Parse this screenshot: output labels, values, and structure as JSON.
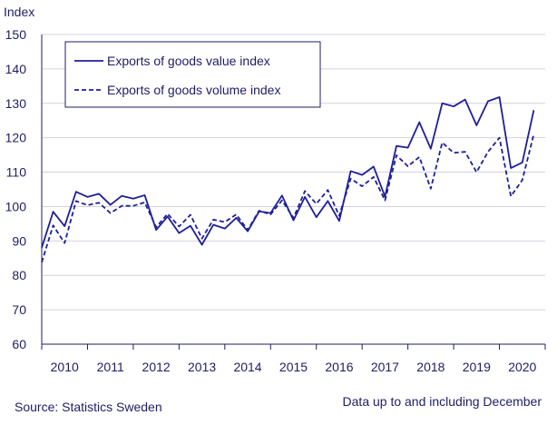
{
  "chart_data": {
    "type": "line",
    "ylabel": "Index",
    "ylim": [
      60,
      150
    ],
    "yticks": [
      60,
      70,
      80,
      90,
      100,
      110,
      120,
      130,
      140,
      150
    ],
    "xlim": [
      2010,
      2021
    ],
    "xticks": [
      "2010",
      "2011",
      "2012",
      "2013",
      "2014",
      "2015",
      "2016",
      "2017",
      "2018",
      "2019",
      "2020"
    ],
    "grid": "horizontal",
    "legend_position": "top-left",
    "x": [
      2010.0,
      2010.25,
      2010.5,
      2010.75,
      2011.0,
      2011.25,
      2011.5,
      2011.75,
      2012.0,
      2012.25,
      2012.5,
      2012.75,
      2013.0,
      2013.25,
      2013.5,
      2013.75,
      2014.0,
      2014.25,
      2014.5,
      2014.75,
      2015.0,
      2015.25,
      2015.5,
      2015.75,
      2016.0,
      2016.25,
      2016.5,
      2016.75,
      2017.0,
      2017.25,
      2017.5,
      2017.75,
      2018.0,
      2018.25,
      2018.5,
      2018.75,
      2019.0,
      2019.25,
      2019.5,
      2019.75,
      2020.0,
      2020.25,
      2020.5,
      2020.75
    ],
    "series": [
      {
        "name": "Exports of goods value index",
        "style": "solid",
        "values": [
          88.0,
          98.5,
          94.3,
          104.3,
          102.8,
          103.7,
          100.5,
          103.1,
          102.3,
          103.3,
          93.2,
          97.1,
          92.3,
          94.4,
          88.9,
          94.7,
          93.6,
          96.7,
          92.8,
          98.6,
          98.1,
          103.2,
          96.0,
          102.8,
          96.9,
          101.6,
          95.8,
          110.3,
          109.2,
          111.6,
          102.9,
          117.6,
          117.1,
          124.5,
          116.8,
          130.0,
          129.1,
          131.1,
          123.6,
          130.6,
          131.8,
          111.2,
          112.8,
          128.0
        ]
      },
      {
        "name": "Exports of goods volume index",
        "style": "dashed",
        "values": [
          83.8,
          94.5,
          89.4,
          101.6,
          100.4,
          101.1,
          98.1,
          100.2,
          100.2,
          101.2,
          94.0,
          97.9,
          94.2,
          97.6,
          90.7,
          96.2,
          95.5,
          97.7,
          93.2,
          98.8,
          97.7,
          101.8,
          96.7,
          104.5,
          100.8,
          104.8,
          97.3,
          108.1,
          105.9,
          108.6,
          101.8,
          114.9,
          111.7,
          114.4,
          105.2,
          118.6,
          115.6,
          115.9,
          110.0,
          115.9,
          120.0,
          103.0,
          107.7,
          121.0
        ]
      }
    ]
  },
  "colors": {
    "line": "#1e1e9b",
    "axis": "#1e1e64",
    "grid": "#d2d2dc",
    "text": "#1e1e64"
  },
  "footer": {
    "source": "Source: Statistics Sweden",
    "note": "Data up to and including December"
  }
}
